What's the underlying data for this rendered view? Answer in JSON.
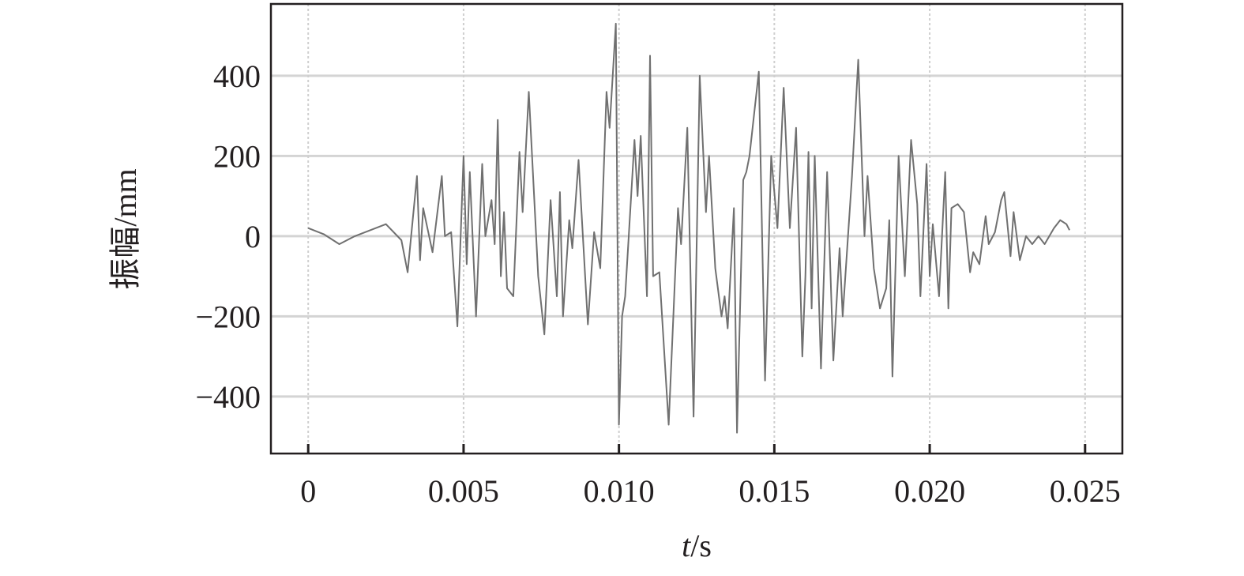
{
  "chart_data": {
    "type": "line",
    "title": "",
    "xlabel_italic": "t",
    "xlabel_rest": "/s",
    "ylabel": "振幅/mm",
    "xlim": [
      -0.0012,
      0.0262
    ],
    "ylim": [
      -542,
      579
    ],
    "xticks": [
      0,
      0.005,
      0.01,
      0.015,
      0.02,
      0.025
    ],
    "xtick_labels": [
      "0",
      "0.005",
      "0.010",
      "0.015",
      "0.020",
      "0.025"
    ],
    "yticks": [
      -400,
      -200,
      0,
      200,
      400
    ],
    "ytick_labels": [
      "−400",
      "−200",
      "0",
      "200",
      "400"
    ],
    "grid": true,
    "line_color": "#707070",
    "series": [
      {
        "x": [
          0,
          0.0005,
          0.001,
          0.0015,
          0.002,
          0.0025,
          0.003,
          0.0032,
          0.0035,
          0.0036,
          0.0037,
          0.004,
          0.0043,
          0.0044,
          0.0046,
          0.0048,
          0.005,
          0.0051,
          0.0052,
          0.0054,
          0.0056,
          0.0057,
          0.0059,
          0.006,
          0.0061,
          0.0062,
          0.0063,
          0.0064,
          0.0066,
          0.0068,
          0.0069,
          0.0071,
          0.0074,
          0.0076,
          0.0078,
          0.008,
          0.0081,
          0.0082,
          0.0084,
          0.0085,
          0.0087,
          0.009,
          0.0092,
          0.0094,
          0.0096,
          0.0097,
          0.0099,
          0.01,
          0.0101,
          0.0102,
          0.0105,
          0.0106,
          0.0107,
          0.0109,
          0.011,
          0.0111,
          0.0113,
          0.0116,
          0.0119,
          0.012,
          0.0122,
          0.0124,
          0.0126,
          0.0128,
          0.0129,
          0.0131,
          0.0133,
          0.0134,
          0.0135,
          0.0137,
          0.0138,
          0.014,
          0.0141,
          0.0142,
          0.0145,
          0.0147,
          0.0149,
          0.0151,
          0.0153,
          0.0155,
          0.0157,
          0.0159,
          0.016,
          0.0161,
          0.0162,
          0.0163,
          0.0165,
          0.0167,
          0.0169,
          0.0171,
          0.0172,
          0.0175,
          0.0177,
          0.0179,
          0.018,
          0.0182,
          0.0184,
          0.0186,
          0.0187,
          0.0188,
          0.019,
          0.0192,
          0.0194,
          0.0196,
          0.0197,
          0.0199,
          0.02,
          0.0201,
          0.0203,
          0.0205,
          0.0206,
          0.0207,
          0.0209,
          0.0211,
          0.0213,
          0.0214,
          0.0216,
          0.0218,
          0.0219,
          0.0221,
          0.0223,
          0.0224,
          0.0226,
          0.0227,
          0.0229,
          0.0231,
          0.0233,
          0.0235,
          0.0237,
          0.024,
          0.0242,
          0.0244,
          0.0245
        ],
        "y": [
          20,
          5,
          -20,
          0,
          15,
          30,
          -10,
          -90,
          150,
          -60,
          70,
          -40,
          150,
          0,
          10,
          -225,
          200,
          -70,
          160,
          -200,
          180,
          0,
          90,
          -20,
          290,
          -100,
          60,
          -130,
          -150,
          210,
          60,
          360,
          -100,
          -245,
          90,
          -150,
          110,
          -200,
          40,
          -30,
          190,
          -220,
          10,
          -80,
          360,
          270,
          530,
          -470,
          -200,
          -150,
          240,
          100,
          250,
          -150,
          450,
          -100,
          -90,
          -470,
          70,
          -20,
          270,
          -450,
          400,
          60,
          200,
          -80,
          -200,
          -150,
          -230,
          70,
          -490,
          140,
          160,
          200,
          410,
          -360,
          200,
          20,
          370,
          20,
          270,
          -300,
          -100,
          210,
          -180,
          200,
          -330,
          160,
          -310,
          -30,
          -200,
          150,
          440,
          0,
          150,
          -80,
          -180,
          -130,
          40,
          -350,
          200,
          -100,
          240,
          80,
          -150,
          180,
          -100,
          30,
          -150,
          160,
          -180,
          70,
          80,
          60,
          -90,
          -40,
          -70,
          50,
          -20,
          10,
          90,
          110,
          -50,
          60,
          -60,
          0,
          -20,
          0,
          -20,
          20,
          40,
          30,
          15
        ]
      }
    ]
  }
}
